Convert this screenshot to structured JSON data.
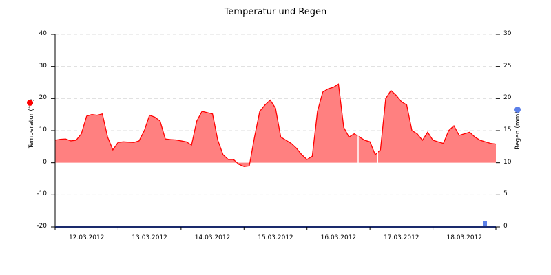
{
  "chart_data": {
    "type": "area",
    "title": "Temperatur und Regen",
    "xlabel": "",
    "ylabel": "Temperatur (°C)",
    "ylabel_right": "Regen (mm)",
    "ylim": [
      -20,
      40
    ],
    "ylim_right": [
      0,
      30
    ],
    "yticks_left": [
      "40",
      "30",
      "20",
      "10",
      "0",
      "-10",
      "-20"
    ],
    "yticks_right": [
      "30",
      "25",
      "20",
      "15",
      "10",
      "5",
      "0"
    ],
    "categories": [
      "12.03.2012",
      "13.03.2012",
      "14.03.2012",
      "15.03.2012",
      "16.03.2012",
      "17.03.2012",
      "18.03.2012"
    ],
    "grid": "horizontal dashed",
    "legend_markers": [
      {
        "name": "Temperatur (°C)",
        "color": "#ff0000"
      },
      {
        "name": "Regen (mm)",
        "color": "#5b7fe8"
      }
    ],
    "series": [
      {
        "name": "Temperatur",
        "axis": "left",
        "color": "#ff0000",
        "fill": "#ff8080",
        "x_hours": [
          0,
          2,
          4,
          6,
          8,
          10,
          12,
          14,
          16,
          18,
          20,
          22,
          24,
          26,
          28,
          30,
          32,
          34,
          36,
          38,
          40,
          42,
          44,
          46,
          48,
          50,
          52,
          54,
          56,
          58,
          60,
          62,
          64,
          66,
          68,
          70,
          72,
          74,
          76,
          78,
          80,
          82,
          84,
          86,
          88,
          90,
          92,
          94,
          96,
          98,
          100,
          102,
          104,
          106,
          108,
          110,
          112,
          114,
          116,
          118,
          120,
          122,
          124,
          126,
          128,
          130,
          132,
          134,
          136,
          138,
          140,
          142,
          144,
          146,
          148,
          150,
          152,
          154,
          156,
          158,
          160,
          162,
          164,
          166,
          168
        ],
        "values": [
          7,
          7.3,
          7.4,
          6.8,
          7,
          9,
          14.5,
          15,
          14.8,
          15.2,
          8,
          4,
          6.3,
          6.5,
          6.4,
          6.3,
          6.8,
          10,
          14.8,
          14.2,
          13,
          7.4,
          7.2,
          7.1,
          6.8,
          6.5,
          5.5,
          13,
          16,
          15.6,
          15.2,
          7,
          2.5,
          1,
          1,
          -0.5,
          -1.2,
          -1,
          8,
          16,
          18,
          19.5,
          17,
          8,
          7,
          6,
          4.5,
          2.5,
          1,
          2,
          16,
          22,
          23,
          23.5,
          24.5,
          11,
          8,
          9,
          8,
          7,
          6.5,
          2.5,
          4,
          20,
          22.5,
          21,
          19,
          18,
          10,
          9,
          7,
          9.5,
          7,
          6.5,
          6,
          10,
          11.5,
          8.5,
          9,
          9.5,
          8,
          7,
          6.5,
          6,
          5.8
        ]
      },
      {
        "name": "Regen",
        "axis": "right",
        "color": "#5b7fe8",
        "bars": [
          {
            "x_hours": 163,
            "value": 0.9
          }
        ]
      }
    ]
  }
}
